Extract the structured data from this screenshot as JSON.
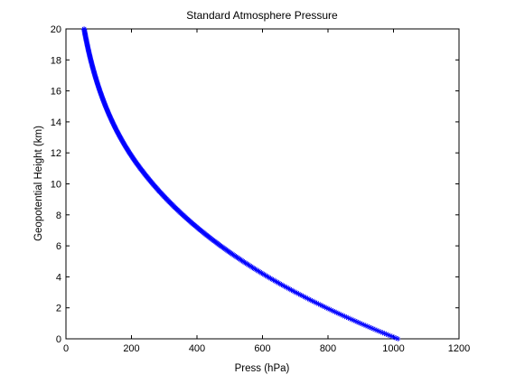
{
  "chart_data": {
    "type": "scatter",
    "title": "Standard Atmosphere Pressure",
    "xlabel": "Press (hPa)",
    "ylabel": "Geopotential Height (km)",
    "xlim": [
      0,
      1200
    ],
    "ylim": [
      0,
      20
    ],
    "x_ticks": [
      "0",
      "200",
      "400",
      "600",
      "800",
      "1000",
      "1200"
    ],
    "y_ticks": [
      "0",
      "2",
      "4",
      "6",
      "8",
      "10",
      "12",
      "14",
      "16",
      "18",
      "20"
    ],
    "grid": false,
    "legend": "none",
    "marker": "asterisk",
    "marker_color": "#0000ff",
    "series": [
      {
        "x": [
          1013.25,
          954.6,
          898.8,
          845.6,
          795.0,
          746.9,
          701.1,
          657.6,
          616.4,
          577.3,
          540.5,
          505.4,
          472.2,
          440.8,
          411.1,
          383.0,
          356.5,
          331.5,
          308.0,
          285.8,
          265.0,
          245.4,
          227.0,
          209.8,
          194.0,
          179.3,
          165.8,
          153.2,
          141.7,
          131.0,
          121.1,
          112.0,
          103.5,
          95.7,
          88.5,
          81.8,
          75.6,
          69.9,
          64.7,
          59.8,
          55.3
        ],
        "y": [
          0,
          0.5,
          1,
          1.5,
          2,
          2.5,
          3,
          3.5,
          4,
          4.5,
          5,
          5.5,
          6,
          6.5,
          7,
          7.5,
          8,
          8.5,
          9,
          9.5,
          10,
          10.5,
          11,
          11.5,
          12,
          12.5,
          13,
          13.5,
          14,
          14.5,
          15,
          15.5,
          16,
          16.5,
          17,
          17.5,
          18,
          18.5,
          19,
          19.5,
          20
        ]
      }
    ]
  }
}
